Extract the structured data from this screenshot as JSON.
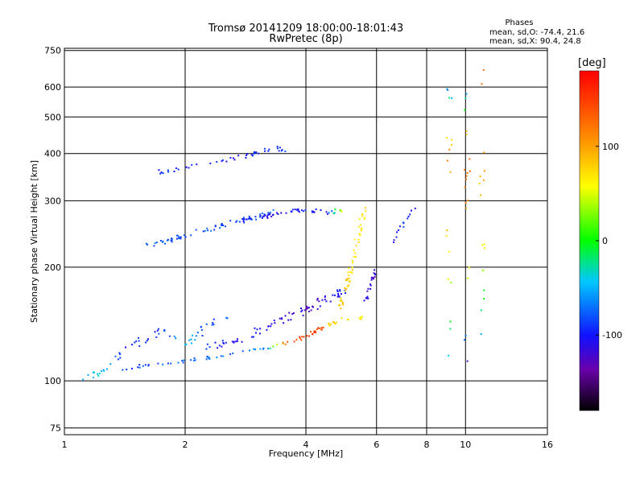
{
  "chart_data": {
    "type": "scatter",
    "title": "Tromsø 20141209 18:00:00-18:01:43",
    "subtitle": "RwPretec (8p)",
    "xlabel": "Frequency [MHz]",
    "ylabel": "Stationary phase Virtual Height [km]",
    "xscale": "log",
    "yscale": "log",
    "xlim": [
      1,
      16
    ],
    "ylim": [
      72,
      760
    ],
    "xticks": [
      1,
      2,
      4,
      6,
      8,
      10,
      16
    ],
    "yticks": [
      75,
      100,
      200,
      300,
      400,
      500,
      600,
      750
    ],
    "grid": true,
    "stats": {
      "title": "Phases",
      "line_o": "mean, sd,O: -74.4, 21.6",
      "line_x": "mean, sd,X:  90.4, 24.8"
    },
    "colorbar": {
      "label": "[deg]",
      "range": [
        -180,
        180
      ],
      "ticks": [
        100,
        0,
        -100
      ]
    },
    "traces": [
      {
        "f": [
          1.35,
          1.5,
          1.7,
          2.0,
          2.4,
          2.8,
          3.2,
          3.6,
          4.0,
          4.3,
          4.6,
          4.9,
          5.2,
          5.6
        ],
        "h": [
          107,
          109,
          111,
          113,
          116,
          119,
          122,
          126,
          131,
          137,
          141,
          145,
          146,
          147
        ],
        "phase": [
          -85,
          -88,
          -80,
          -75,
          -70,
          -72,
          -60,
          140,
          145,
          150,
          80,
          75,
          70,
          65
        ],
        "spread": 2.0,
        "n": 90
      },
      {
        "f": [
          1.6,
          1.8,
          2.0,
          2.3,
          2.6,
          3.0,
          3.3
        ],
        "h": [
          228,
          235,
          243,
          252,
          262,
          272,
          280
        ],
        "phase": [
          -75,
          -80,
          -82,
          -78,
          -85,
          -80,
          -75
        ],
        "spread": 3.0,
        "n": 70
      },
      {
        "f": [
          2.8,
          3.2,
          3.6,
          4.0,
          4.5,
          5.0
        ],
        "h": [
          265,
          273,
          280,
          283,
          279,
          283
        ],
        "phase": [
          -100,
          -110,
          -105,
          -100,
          -108,
          85
        ],
        "spread": 2.5,
        "n": 55
      },
      {
        "f": [
          1.7,
          2.0,
          2.3,
          2.7,
          3.0,
          3.3,
          3.6
        ],
        "h": [
          357,
          367,
          378,
          390,
          402,
          412,
          410
        ],
        "phase": [
          -90,
          -95,
          -98,
          -100,
          -95,
          -90,
          -88
        ],
        "spread": 3.0,
        "n": 45
      },
      {
        "f": [
          2.2,
          2.6,
          3.0,
          3.4,
          3.8,
          4.2,
          4.6,
          5.0
        ],
        "h": [
          120,
          127,
          134,
          142,
          150,
          158,
          166,
          175
        ],
        "phase": [
          -95,
          -100,
          -105,
          -110,
          -115,
          -120,
          -105,
          -100
        ],
        "spread": 5.0,
        "n": 80
      },
      {
        "f": [
          4.8,
          5.0,
          5.2,
          5.4,
          5.6
        ],
        "h": [
          150,
          170,
          200,
          240,
          290
        ],
        "phase": [
          85,
          80,
          75,
          70,
          70
        ],
        "spread": 3.0,
        "n": 55
      },
      {
        "f": [
          5.6,
          5.8,
          6.0
        ],
        "h": [
          160,
          180,
          200
        ],
        "phase": [
          -110,
          -115,
          -120
        ],
        "spread": 2.0,
        "n": 20
      },
      {
        "f": [
          9.1,
          9.1,
          9.1,
          9.1
        ],
        "h": [
          110,
          200,
          400,
          620
        ],
        "phase": [
          -50,
          60,
          110,
          -80
        ],
        "spread": 3.5,
        "n": 18
      },
      {
        "f": [
          10.1,
          10.1,
          10.1,
          10.1
        ],
        "h": [
          110,
          220,
          420,
          600
        ],
        "phase": [
          -120,
          80,
          140,
          -90
        ],
        "spread": 3.5,
        "n": 20
      },
      {
        "f": [
          11.0,
          11.0,
          11.0,
          11.0
        ],
        "h": [
          130,
          260,
          420,
          700
        ],
        "phase": [
          -60,
          80,
          100,
          120
        ],
        "spread": 3.5,
        "n": 16
      },
      {
        "f": [
          6.5,
          7.0,
          7.5
        ],
        "h": [
          230,
          260,
          285
        ],
        "phase": [
          -110,
          -90,
          -105
        ],
        "spread": 2.5,
        "n": 14
      },
      {
        "f": [
          1.1,
          1.25,
          1.4,
          1.6,
          1.8,
          2.0,
          2.3,
          2.6
        ],
        "h": [
          103,
          105,
          120,
          130,
          137,
          125,
          140,
          150
        ],
        "phase": [
          -40,
          -45,
          -90,
          -100,
          -80,
          -50,
          -95,
          -55
        ],
        "spread": 4.5,
        "n": 60
      }
    ]
  }
}
